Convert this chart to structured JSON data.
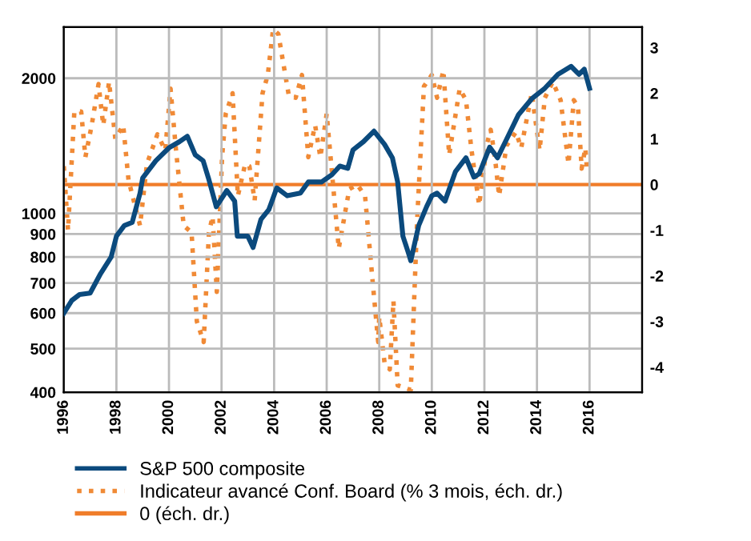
{
  "chart_data": {
    "type": "line",
    "xlim": [
      1996,
      2018
    ],
    "xticks": [
      1996,
      1998,
      2000,
      2002,
      2004,
      2006,
      2008,
      2010,
      2012,
      2014,
      2016
    ],
    "ylim": [
      400,
      2600
    ],
    "yticks": [
      400,
      500,
      600,
      700,
      800,
      900,
      1000,
      2000
    ],
    "log": "y",
    "y2lim": [
      -4.55,
      3.45
    ],
    "y2ticks": [
      -4,
      -3,
      -2,
      -1,
      0,
      1,
      2,
      3
    ],
    "grid": true,
    "legend": "bottom",
    "series": [
      {
        "name": "S&P 500 composite",
        "color": "#0b4a7d",
        "line_style": "solid",
        "x": [
          1996.0,
          1996.3,
          1996.6,
          1997.0,
          1997.4,
          1997.8,
          1998.0,
          1998.3,
          1998.6,
          1998.9,
          1999.0,
          1999.5,
          2000.0,
          2000.4,
          2000.7,
          2001.0,
          2001.3,
          2001.5,
          2001.8,
          2002.2,
          2002.5,
          2002.6,
          2003.0,
          2003.2,
          2003.5,
          2003.8,
          2004.1,
          2004.5,
          2005.0,
          2005.3,
          2005.8,
          2006.2,
          2006.5,
          2006.8,
          2007.0,
          2007.4,
          2007.8,
          2008.2,
          2008.5,
          2008.7,
          2008.9,
          2009.1,
          2009.2,
          2009.5,
          2009.8,
          2010.0,
          2010.2,
          2010.5,
          2010.9,
          2011.3,
          2011.6,
          2011.8,
          2012.2,
          2012.5,
          2012.8,
          2013.3,
          2013.8,
          2014.3,
          2014.8,
          2015.3,
          2015.6,
          2015.8,
          2016.0
        ],
        "values": [
          600,
          640,
          660,
          665,
          735,
          800,
          890,
          940,
          955,
          1110,
          1200,
          1310,
          1400,
          1445,
          1485,
          1350,
          1310,
          1200,
          1035,
          1125,
          1065,
          890,
          890,
          840,
          970,
          1020,
          1140,
          1095,
          1110,
          1175,
          1175,
          1220,
          1275,
          1260,
          1385,
          1445,
          1525,
          1425,
          1330,
          1175,
          890,
          820,
          785,
          940,
          1035,
          1095,
          1110,
          1065,
          1240,
          1330,
          1205,
          1225,
          1405,
          1330,
          1445,
          1660,
          1800,
          1900,
          2040,
          2125,
          2040,
          2095,
          1900
        ]
      },
      {
        "name": "Indicateur avancé Conf. Board (% 3 mois, éch. dr.)",
        "color": "#f08a36",
        "line_style": "dotted",
        "axis": "y2",
        "x": [
          1996.0,
          1996.16,
          1996.4,
          1996.66,
          1996.82,
          1997.06,
          1997.32,
          1997.5,
          1997.72,
          1997.96,
          1998.26,
          1998.46,
          1998.9,
          1999.16,
          1999.56,
          1999.86,
          2000.06,
          2000.26,
          2000.56,
          2000.86,
          2001.06,
          2001.32,
          2001.52,
          2001.66,
          2001.82,
          2002.02,
          2002.16,
          2002.42,
          2002.62,
          2002.9,
          2003.06,
          2003.26,
          2003.56,
          2003.76,
          2003.96,
          2004.16,
          2004.56,
          2004.82,
          2005.06,
          2005.3,
          2005.56,
          2005.76,
          2006.0,
          2006.46,
          2006.86,
          2007.16,
          2007.46,
          2007.76,
          2007.96,
          2008.0,
          2008.2,
          2008.4,
          2008.54,
          2008.7,
          2009.2,
          2009.44,
          2009.7,
          2010.0,
          2010.2,
          2010.44,
          2010.66,
          2011.06,
          2011.3,
          2011.5,
          2011.8,
          2012.1,
          2012.24,
          2012.4,
          2012.56,
          2012.84,
          2013.2,
          2013.4,
          2013.8,
          2014.1,
          2014.3,
          2014.6,
          2014.9,
          2015.2,
          2015.4,
          2015.56,
          2015.7,
          2015.84,
          2015.9
        ],
        "values": [
          0.4,
          -1.0,
          1.6,
          1.6,
          0.6,
          1.3,
          2.2,
          1.3,
          2.25,
          1.0,
          1.3,
          0.1,
          -0.9,
          0.45,
          1.1,
          0.75,
          2.1,
          0.8,
          -0.9,
          -1.05,
          -3.0,
          -3.45,
          -1.05,
          -0.7,
          -2.35,
          0.6,
          1.55,
          2.0,
          -0.25,
          0.45,
          0.4,
          -0.35,
          2.0,
          2.4,
          3.4,
          3.3,
          1.95,
          1.9,
          2.4,
          0.6,
          1.3,
          0.6,
          1.55,
          -1.4,
          -0.1,
          0.0,
          -0.25,
          -2.2,
          -3.45,
          -2.9,
          -3.9,
          -4.05,
          -2.55,
          -4.4,
          -4.5,
          -0.8,
          2.15,
          2.4,
          1.9,
          2.5,
          0.65,
          2.1,
          1.85,
          0.8,
          -0.45,
          0.9,
          1.2,
          0.6,
          -0.25,
          0.85,
          1.15,
          0.8,
          2.0,
          0.75,
          1.9,
          2.25,
          1.85,
          0.45,
          1.85,
          1.7,
          0.35,
          0.8,
          0.35
        ]
      }
    ],
    "ref_lines": [
      {
        "axis": "y2",
        "value": 0,
        "label": "0 (éch. dr.)",
        "color": "#f07d2a",
        "line_style": "solid"
      }
    ]
  }
}
